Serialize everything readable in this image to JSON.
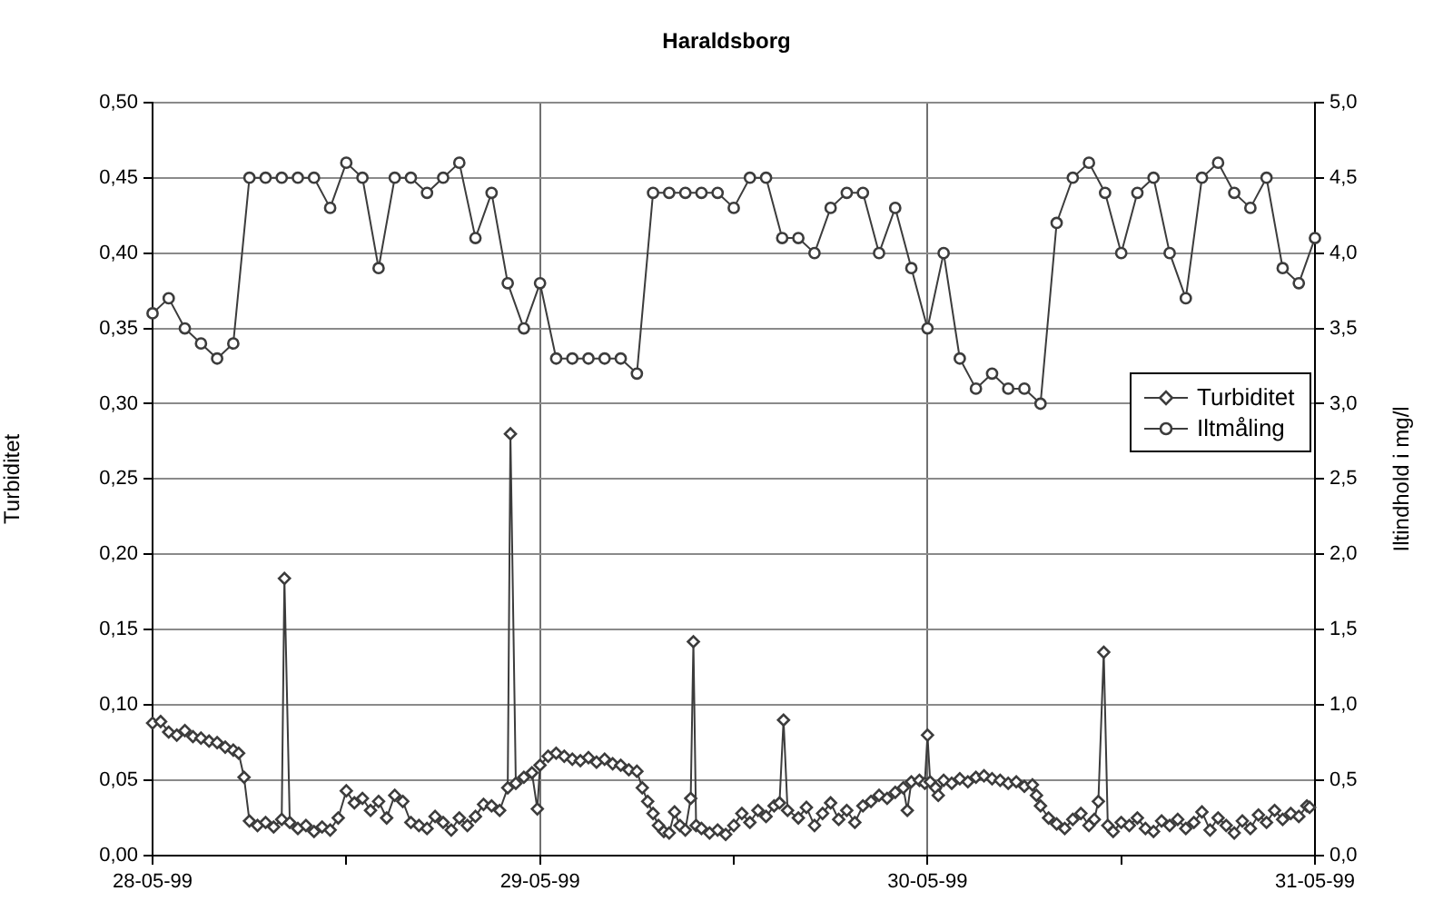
{
  "chart_data": {
    "type": "line",
    "title": "Haraldsborg",
    "ylabel": "Turbiditet",
    "y2label": "Iltindhold i mg/l",
    "xlim": [
      "1999-05-28",
      "1999-05-31"
    ],
    "xticks": [
      {
        "value": "1999-05-28",
        "label": "28-05-99"
      },
      {
        "value": "1999-05-28T12:00",
        "label": null
      },
      {
        "value": "1999-05-29",
        "label": "29-05-99"
      },
      {
        "value": "1999-05-29T12:00",
        "label": null
      },
      {
        "value": "1999-05-30",
        "label": "30-05-99"
      },
      {
        "value": "1999-05-30T12:00",
        "label": null
      },
      {
        "value": "1999-05-31",
        "label": "31-05-99"
      }
    ],
    "ylim": [
      0,
      0.5
    ],
    "yticks": [
      {
        "value": 0,
        "label": "0,00"
      },
      {
        "value": 0.05,
        "label": "0,05"
      },
      {
        "value": 0.1,
        "label": "0,10"
      },
      {
        "value": 0.15,
        "label": "0,15"
      },
      {
        "value": 0.2,
        "label": "0,20"
      },
      {
        "value": 0.25,
        "label": "0,25"
      },
      {
        "value": 0.3,
        "label": "0,30"
      },
      {
        "value": 0.35,
        "label": "0,35"
      },
      {
        "value": 0.4,
        "label": "0,40"
      },
      {
        "value": 0.45,
        "label": "0,45"
      },
      {
        "value": 0.5,
        "label": "0,50"
      }
    ],
    "y2lim": [
      0,
      5
    ],
    "y2ticks": [
      {
        "value": 0,
        "label": "0,0"
      },
      {
        "value": 0.5,
        "label": "0,5"
      },
      {
        "value": 1,
        "label": "1,0"
      },
      {
        "value": 1.5,
        "label": "1,5"
      },
      {
        "value": 2,
        "label": "2,0"
      },
      {
        "value": 2.5,
        "label": "2,5"
      },
      {
        "value": 3,
        "label": "3,0"
      },
      {
        "value": 3.5,
        "label": "3,5"
      },
      {
        "value": 4,
        "label": "4,0"
      },
      {
        "value": 4.5,
        "label": "4,5"
      },
      {
        "value": 5,
        "label": "5,0"
      }
    ],
    "grid": true,
    "legend": "right",
    "series": [
      {
        "name": "Turbiditet",
        "color": "#3c3c3c",
        "marker": "diamond",
        "x": [
          "1999-05-28T00:00",
          "1999-05-28T00:30",
          "1999-05-28T01:00",
          "1999-05-28T01:30",
          "1999-05-28T02:00",
          "1999-05-28T02:30",
          "1999-05-28T03:00",
          "1999-05-28T03:30",
          "1999-05-28T04:00",
          "1999-05-28T04:30",
          "1999-05-28T05:00",
          "1999-05-28T05:20",
          "1999-05-28T05:40",
          "1999-05-28T06:00",
          "1999-05-28T06:30",
          "1999-05-28T07:00",
          "1999-05-28T07:30",
          "1999-05-28T08:00",
          "1999-05-28T08:10",
          "1999-05-28T08:30",
          "1999-05-28T09:00",
          "1999-05-28T09:30",
          "1999-05-28T10:00",
          "1999-05-28T10:30",
          "1999-05-28T11:00",
          "1999-05-28T11:30",
          "1999-05-28T12:00",
          "1999-05-28T12:30",
          "1999-05-28T13:00",
          "1999-05-28T13:30",
          "1999-05-28T14:00",
          "1999-05-28T14:30",
          "1999-05-28T15:00",
          "1999-05-28T15:30",
          "1999-05-28T16:00",
          "1999-05-28T16:30",
          "1999-05-28T17:00",
          "1999-05-28T17:30",
          "1999-05-28T18:00",
          "1999-05-28T18:30",
          "1999-05-28T19:00",
          "1999-05-28T19:30",
          "1999-05-28T20:00",
          "1999-05-28T20:30",
          "1999-05-28T21:00",
          "1999-05-28T21:30",
          "1999-05-28T22:00",
          "1999-05-28T22:10",
          "1999-05-28T22:30",
          "1999-05-28T23:00",
          "1999-05-28T23:30",
          "1999-05-28T23:50",
          "1999-05-29T00:00",
          "1999-05-29T00:30",
          "1999-05-29T01:00",
          "1999-05-29T01:30",
          "1999-05-29T02:00",
          "1999-05-29T02:30",
          "1999-05-29T03:00",
          "1999-05-29T03:30",
          "1999-05-29T04:00",
          "1999-05-29T04:30",
          "1999-05-29T05:00",
          "1999-05-29T05:30",
          "1999-05-29T06:00",
          "1999-05-29T06:20",
          "1999-05-29T06:40",
          "1999-05-29T07:00",
          "1999-05-29T07:20",
          "1999-05-29T07:40",
          "1999-05-29T08:00",
          "1999-05-29T08:20",
          "1999-05-29T08:40",
          "1999-05-29T09:00",
          "1999-05-29T09:20",
          "1999-05-29T09:30",
          "1999-05-29T09:40",
          "1999-05-29T10:00",
          "1999-05-29T10:30",
          "1999-05-29T11:00",
          "1999-05-29T11:30",
          "1999-05-29T12:00",
          "1999-05-29T12:30",
          "1999-05-29T13:00",
          "1999-05-29T13:30",
          "1999-05-29T14:00",
          "1999-05-29T14:30",
          "1999-05-29T14:50",
          "1999-05-29T15:05",
          "1999-05-29T15:20",
          "1999-05-29T16:00",
          "1999-05-29T16:30",
          "1999-05-29T17:00",
          "1999-05-29T17:30",
          "1999-05-29T18:00",
          "1999-05-29T18:30",
          "1999-05-29T19:00",
          "1999-05-29T19:30",
          "1999-05-29T20:00",
          "1999-05-29T20:30",
          "1999-05-29T21:00",
          "1999-05-29T21:30",
          "1999-05-29T22:00",
          "1999-05-29T22:30",
          "1999-05-29T22:45",
          "1999-05-29T23:00",
          "1999-05-29T23:30",
          "1999-05-29T23:50",
          "1999-05-30T00:00",
          "1999-05-30T00:10",
          "1999-05-30T00:30",
          "1999-05-30T00:40",
          "1999-05-30T01:00",
          "1999-05-30T01:30",
          "1999-05-30T02:00",
          "1999-05-30T02:30",
          "1999-05-30T03:00",
          "1999-05-30T03:30",
          "1999-05-30T04:00",
          "1999-05-30T04:30",
          "1999-05-30T05:00",
          "1999-05-30T05:30",
          "1999-05-30T06:00",
          "1999-05-30T06:30",
          "1999-05-30T06:45",
          "1999-05-30T07:00",
          "1999-05-30T07:30",
          "1999-05-30T08:00",
          "1999-05-30T08:30",
          "1999-05-30T09:00",
          "1999-05-30T09:30",
          "1999-05-30T10:00",
          "1999-05-30T10:20",
          "1999-05-30T10:35",
          "1999-05-30T10:55",
          "1999-05-30T11:10",
          "1999-05-30T11:30",
          "1999-05-30T12:00",
          "1999-05-30T12:30",
          "1999-05-30T13:00",
          "1999-05-30T13:30",
          "1999-05-30T14:00",
          "1999-05-30T14:30",
          "1999-05-30T15:00",
          "1999-05-30T15:30",
          "1999-05-30T16:00",
          "1999-05-30T16:30",
          "1999-05-30T17:00",
          "1999-05-30T17:30",
          "1999-05-30T18:00",
          "1999-05-30T18:30",
          "1999-05-30T19:00",
          "1999-05-30T19:30",
          "1999-05-30T20:00",
          "1999-05-30T20:30",
          "1999-05-30T21:00",
          "1999-05-30T21:30",
          "1999-05-30T22:00",
          "1999-05-30T22:30",
          "1999-05-30T23:00",
          "1999-05-30T23:30",
          "1999-05-30T23:40"
        ],
        "values": [
          0.088,
          0.089,
          0.082,
          0.08,
          0.083,
          0.079,
          0.078,
          0.076,
          0.075,
          0.072,
          0.07,
          0.068,
          0.052,
          0.023,
          0.02,
          0.022,
          0.019,
          0.024,
          0.184,
          0.022,
          0.018,
          0.02,
          0.016,
          0.019,
          0.017,
          0.025,
          0.043,
          0.035,
          0.038,
          0.03,
          0.036,
          0.025,
          0.04,
          0.036,
          0.022,
          0.02,
          0.018,
          0.026,
          0.022,
          0.017,
          0.025,
          0.02,
          0.026,
          0.034,
          0.033,
          0.03,
          0.045,
          0.28,
          0.048,
          0.052,
          0.055,
          0.031,
          0.06,
          0.066,
          0.068,
          0.066,
          0.064,
          0.063,
          0.065,
          0.062,
          0.064,
          0.061,
          0.06,
          0.057,
          0.056,
          0.045,
          0.036,
          0.028,
          0.02,
          0.016,
          0.015,
          0.029,
          0.02,
          0.017,
          0.038,
          0.142,
          0.02,
          0.018,
          0.015,
          0.017,
          0.014,
          0.02,
          0.028,
          0.022,
          0.03,
          0.026,
          0.033,
          0.035,
          0.09,
          0.03,
          0.025,
          0.032,
          0.02,
          0.028,
          0.035,
          0.024,
          0.03,
          0.022,
          0.033,
          0.036,
          0.04,
          0.038,
          0.042,
          0.045,
          0.03,
          0.049,
          0.05,
          0.048,
          0.08,
          0.049,
          0.045,
          0.04,
          0.05,
          0.048,
          0.051,
          0.049,
          0.052,
          0.053,
          0.051,
          0.05,
          0.048,
          0.049,
          0.046,
          0.047,
          0.04,
          0.033,
          0.025,
          0.021,
          0.018,
          0.024,
          0.028,
          0.02,
          0.024,
          0.036,
          0.135,
          0.02,
          0.016,
          0.022,
          0.02,
          0.025,
          0.018,
          0.016,
          0.023,
          0.02,
          0.024,
          0.018,
          0.022,
          0.029,
          0.017,
          0.025,
          0.02,
          0.015,
          0.023,
          0.018,
          0.027,
          0.022,
          0.03,
          0.024,
          0.028,
          0.026,
          0.033,
          0.032
        ]
      },
      {
        "name": "Iltmåling",
        "color": "#3c3c3c",
        "marker": "circle",
        "axis": "y2",
        "x": [
          "1999-05-28T00:00",
          "1999-05-28T01:00",
          "1999-05-28T02:00",
          "1999-05-28T03:00",
          "1999-05-28T04:00",
          "1999-05-28T05:00",
          "1999-05-28T06:00",
          "1999-05-28T07:00",
          "1999-05-28T08:00",
          "1999-05-28T09:00",
          "1999-05-28T10:00",
          "1999-05-28T11:00",
          "1999-05-28T12:00",
          "1999-05-28T13:00",
          "1999-05-28T14:00",
          "1999-05-28T15:00",
          "1999-05-28T16:00",
          "1999-05-28T17:00",
          "1999-05-28T18:00",
          "1999-05-28T19:00",
          "1999-05-28T20:00",
          "1999-05-28T21:00",
          "1999-05-28T22:00",
          "1999-05-28T23:00",
          "1999-05-29T00:00",
          "1999-05-29T01:00",
          "1999-05-29T02:00",
          "1999-05-29T03:00",
          "1999-05-29T04:00",
          "1999-05-29T05:00",
          "1999-05-29T06:00",
          "1999-05-29T07:00",
          "1999-05-29T08:00",
          "1999-05-29T09:00",
          "1999-05-29T10:00",
          "1999-05-29T11:00",
          "1999-05-29T12:00",
          "1999-05-29T13:00",
          "1999-05-29T14:00",
          "1999-05-29T15:00",
          "1999-05-29T16:00",
          "1999-05-29T17:00",
          "1999-05-29T18:00",
          "1999-05-29T19:00",
          "1999-05-29T20:00",
          "1999-05-29T21:00",
          "1999-05-29T22:00",
          "1999-05-29T23:00",
          "1999-05-30T00:00",
          "1999-05-30T01:00",
          "1999-05-30T02:00",
          "1999-05-30T03:00",
          "1999-05-30T04:00",
          "1999-05-30T05:00",
          "1999-05-30T06:00",
          "1999-05-30T07:00",
          "1999-05-30T08:00",
          "1999-05-30T09:00",
          "1999-05-30T10:00",
          "1999-05-30T11:00",
          "1999-05-30T12:00",
          "1999-05-30T13:00",
          "1999-05-30T14:00",
          "1999-05-30T15:00",
          "1999-05-30T16:00",
          "1999-05-30T17:00",
          "1999-05-30T18:00",
          "1999-05-30T19:00",
          "1999-05-30T20:00",
          "1999-05-30T21:00",
          "1999-05-30T22:00",
          "1999-05-30T23:00",
          "1999-05-31T00:00"
        ],
        "values": [
          3.6,
          3.7,
          3.5,
          3.4,
          3.3,
          3.4,
          4.5,
          4.5,
          4.5,
          4.5,
          4.5,
          4.3,
          4.6,
          4.5,
          3.9,
          4.5,
          4.5,
          4.4,
          4.5,
          4.6,
          4.1,
          4.4,
          3.8,
          3.5,
          3.8,
          3.3,
          3.3,
          3.3,
          3.3,
          3.3,
          3.2,
          4.4,
          4.4,
          4.4,
          4.4,
          4.4,
          4.3,
          4.5,
          4.5,
          4.1,
          4.1,
          4.0,
          4.3,
          4.4,
          4.4,
          4.0,
          4.3,
          3.9,
          3.5,
          4.0,
          3.3,
          3.1,
          3.2,
          3.1,
          3.1,
          3.0,
          4.2,
          4.5,
          4.6,
          4.4,
          4.0,
          4.4,
          4.5,
          4.0,
          3.7,
          4.5,
          4.6,
          4.4,
          4.3,
          4.5,
          3.9,
          3.8,
          4.1
        ]
      }
    ]
  }
}
